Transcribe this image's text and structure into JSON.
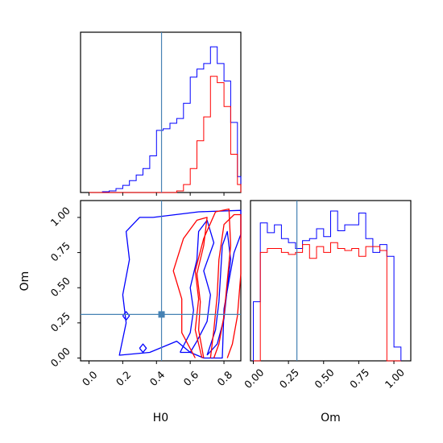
{
  "chart_data": {
    "type": "corner",
    "parameters": [
      "H0",
      "Om"
    ],
    "truth": {
      "H0": 0.43,
      "Om": 0.31
    },
    "colors": {
      "series_1": "#0000ff",
      "series_2": "#ff0000",
      "truth": "#4682b4"
    },
    "panels": {
      "h0_hist": {
        "xlim": [
          -0.05,
          0.9
        ],
        "x_ticks": [
          0.0,
          0.2,
          0.4,
          0.6,
          0.8
        ],
        "bin_edges": [
          0.0,
          0.04,
          0.08,
          0.12,
          0.16,
          0.2,
          0.24,
          0.28,
          0.32,
          0.36,
          0.4,
          0.44,
          0.48,
          0.52,
          0.56,
          0.6,
          0.64,
          0.68,
          0.72,
          0.76,
          0.8,
          0.84,
          0.88,
          0.9
        ],
        "series": [
          {
            "color": "#0000ff",
            "values": [
              0,
              0,
              1,
              2,
              5,
              9,
              15,
              22,
              30,
              46,
              78,
              80,
              87,
              93,
              112,
              145,
              155,
              162,
              183,
              162,
              140,
              88,
              20
            ]
          },
          {
            "color": "#ff0000",
            "values": [
              0,
              0,
              0,
              0,
              0,
              0,
              0,
              0,
              0,
              0,
              0,
              0,
              0,
              2,
              10,
              30,
              65,
              95,
              146,
              138,
              108,
              48,
              10
            ]
          }
        ]
      },
      "om_hist": {
        "xlim": [
          -0.02,
          1.12
        ],
        "x_ticks": [
          "0.00",
          "0.25",
          "0.50",
          "0.75",
          "1.00"
        ],
        "bin_edges": [
          0.0,
          0.05,
          0.1,
          0.15,
          0.2,
          0.25,
          0.3,
          0.35,
          0.4,
          0.45,
          0.5,
          0.55,
          0.6,
          0.65,
          0.7,
          0.75,
          0.8,
          0.85,
          0.9,
          0.95,
          1.0,
          1.05
        ],
        "series": [
          {
            "color": "#0000ff",
            "values": [
              0.3,
              0.7,
              0.65,
              0.69,
              0.62,
              0.6,
              0.57,
              0.61,
              0.62,
              0.67,
              0.63,
              0.76,
              0.66,
              0.69,
              0.69,
              0.75,
              0.62,
              0.55,
              0.59,
              0.53,
              0.07
            ]
          },
          {
            "color": "#ff0000",
            "values": [
              0.0,
              0.55,
              0.57,
              0.57,
              0.55,
              0.54,
              0.55,
              0.59,
              0.52,
              0.58,
              0.55,
              0.6,
              0.57,
              0.56,
              0.57,
              0.53,
              0.58,
              0.58,
              0.56,
              0.0,
              0.0
            ]
          }
        ]
      },
      "joint": {
        "xlim": [
          -0.05,
          0.9
        ],
        "ylim": [
          -0.02,
          1.12
        ],
        "x_ticks": [
          "0.0",
          "0.2",
          "0.4",
          "0.6",
          "0.8"
        ],
        "y_ticks": [
          "0.00",
          "0.25",
          "0.50",
          "0.75",
          "1.00"
        ],
        "xlabel": "H0",
        "ylabel": "Om",
        "contours": [
          {
            "color": "#0000ff",
            "points": [
              [
                0.38,
                1.0
              ],
              [
                0.65,
                1.04
              ],
              [
                0.9,
                1.05
              ],
              [
                0.9,
                0.88
              ],
              [
                0.86,
                0.75
              ],
              [
                0.83,
                0.55
              ],
              [
                0.8,
                0.35
              ],
              [
                0.79,
                0.0
              ],
              [
                0.68,
                0.0
              ],
              [
                0.6,
                0.04
              ],
              [
                0.52,
                0.12
              ],
              [
                0.36,
                0.04
              ],
              [
                0.18,
                0.02
              ],
              [
                0.22,
                0.25
              ],
              [
                0.2,
                0.45
              ],
              [
                0.24,
                0.7
              ],
              [
                0.22,
                0.9
              ],
              [
                0.3,
                1.0
              ],
              [
                0.38,
                1.0
              ]
            ]
          },
          {
            "color": "#0000ff",
            "points": [
              [
                0.54,
                0.04
              ],
              [
                0.6,
                0.18
              ],
              [
                0.62,
                0.34
              ],
              [
                0.6,
                0.5
              ],
              [
                0.64,
                0.7
              ],
              [
                0.65,
                0.9
              ],
              [
                0.7,
                0.98
              ],
              [
                0.74,
                0.82
              ],
              [
                0.68,
                0.62
              ],
              [
                0.72,
                0.45
              ],
              [
                0.7,
                0.26
              ],
              [
                0.64,
                0.12
              ],
              [
                0.6,
                0.04
              ],
              [
                0.54,
                0.04
              ]
            ]
          },
          {
            "color": "#0000ff",
            "points": [
              [
                0.7,
                0.02
              ],
              [
                0.75,
                0.2
              ],
              [
                0.77,
                0.4
              ],
              [
                0.78,
                0.6
              ],
              [
                0.79,
                0.8
              ],
              [
                0.82,
                0.9
              ],
              [
                0.84,
                0.7
              ],
              [
                0.82,
                0.5
              ],
              [
                0.8,
                0.28
              ],
              [
                0.76,
                0.1
              ],
              [
                0.7,
                0.02
              ]
            ]
          },
          {
            "color": "#0000ff",
            "points": [
              [
                0.2,
                0.3
              ],
              [
                0.22,
                0.33
              ],
              [
                0.24,
                0.3
              ],
              [
                0.22,
                0.27
              ],
              [
                0.2,
                0.3
              ]
            ]
          },
          {
            "color": "#0000ff",
            "points": [
              [
                0.3,
                0.07
              ],
              [
                0.32,
                0.1
              ],
              [
                0.34,
                0.07
              ],
              [
                0.32,
                0.04
              ],
              [
                0.3,
                0.07
              ]
            ]
          },
          {
            "color": "#ff0000",
            "points": [
              [
                0.63,
                0.0
              ],
              [
                0.55,
                0.18
              ],
              [
                0.55,
                0.42
              ],
              [
                0.5,
                0.62
              ],
              [
                0.56,
                0.85
              ],
              [
                0.64,
                0.98
              ],
              [
                0.7,
                1.0
              ],
              [
                0.68,
                0.8
              ],
              [
                0.64,
                0.6
              ],
              [
                0.66,
                0.4
              ],
              [
                0.65,
                0.2
              ],
              [
                0.68,
                0.0
              ]
            ]
          },
          {
            "color": "#ff0000",
            "points": [
              [
                0.67,
                0.0
              ],
              [
                0.63,
                0.2
              ],
              [
                0.65,
                0.42
              ],
              [
                0.63,
                0.62
              ],
              [
                0.68,
                0.85
              ],
              [
                0.75,
                1.04
              ],
              [
                0.83,
                1.06
              ],
              [
                0.84,
                0.8
              ],
              [
                0.82,
                0.55
              ],
              [
                0.8,
                0.3
              ],
              [
                0.77,
                0.1
              ],
              [
                0.74,
                0.0
              ]
            ]
          },
          {
            "color": "#ff0000",
            "points": [
              [
                0.72,
                0.0
              ],
              [
                0.74,
                0.2
              ],
              [
                0.76,
                0.45
              ],
              [
                0.77,
                0.7
              ],
              [
                0.8,
                0.95
              ],
              [
                0.86,
                1.02
              ],
              [
                0.9,
                1.02
              ],
              [
                0.9,
                0.6
              ],
              [
                0.88,
                0.3
              ],
              [
                0.85,
                0.1
              ],
              [
                0.82,
                0.0
              ]
            ]
          }
        ]
      }
    }
  }
}
